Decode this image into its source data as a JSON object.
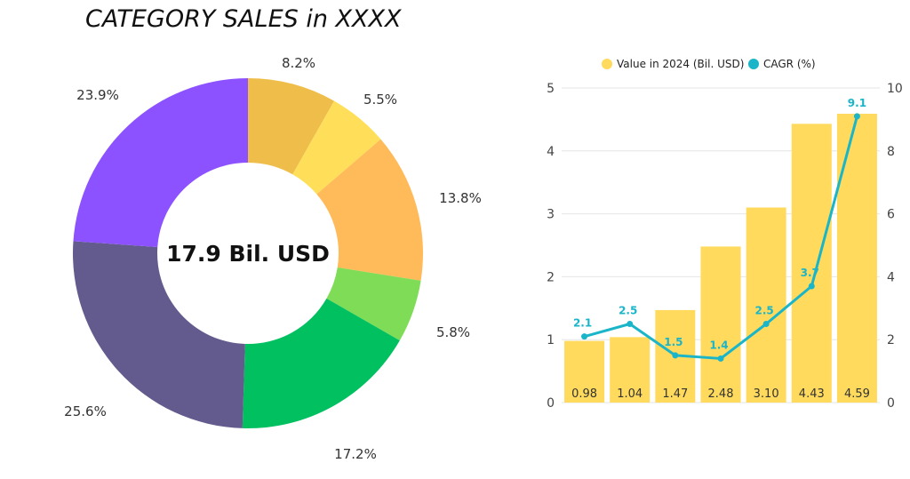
{
  "title": "CATEGORY SALES  in XXXX",
  "chart_data": [
    {
      "type": "donut",
      "center_text": "17.9 Bil. USD",
      "slices": [
        {
          "label": "8.2%",
          "value": 8.2,
          "color": "#EFBE4A"
        },
        {
          "label": "5.5%",
          "value": 5.5,
          "color": "#FFDF5A"
        },
        {
          "label": "13.8%",
          "value": 13.8,
          "color": "#FFBB5A"
        },
        {
          "label": "5.8%",
          "value": 5.8,
          "color": "#7EDC56"
        },
        {
          "label": "17.2%",
          "value": 17.2,
          "color": "#00C060"
        },
        {
          "label": "25.6%",
          "value": 25.6,
          "color": "#635A8E"
        },
        {
          "label": "23.9%",
          "value": 23.9,
          "color": "#8C52FF"
        }
      ]
    },
    {
      "type": "bar+line",
      "legend_position": "top",
      "grid": true,
      "series": [
        {
          "name": "Value in 2024 (Bil. USD)",
          "kind": "bar",
          "axis": "left",
          "color": "#FFDA5C",
          "labels": [
            "0.98",
            "1.04",
            "1.47",
            "2.48",
            "3.10",
            "4.43",
            "4.59"
          ],
          "values": [
            0.98,
            1.04,
            1.47,
            2.48,
            3.1,
            4.43,
            4.59
          ]
        },
        {
          "name": "CAGR (%)",
          "kind": "line",
          "axis": "right",
          "color": "#1AB5C9",
          "labels": [
            "2.1",
            "2.5",
            "1.5",
            "1.4",
            "2.5",
            "3.7",
            "9.1"
          ],
          "values": [
            2.1,
            2.5,
            1.5,
            1.4,
            2.5,
            3.7,
            9.1
          ]
        }
      ],
      "left_axis": {
        "min": 0,
        "max": 5,
        "ticks": [
          "0",
          "1",
          "2",
          "3",
          "4",
          "5"
        ]
      },
      "right_axis": {
        "min": 0,
        "max": 10,
        "ticks": [
          "0",
          "2",
          "4",
          "6",
          "8",
          "10"
        ]
      }
    }
  ]
}
